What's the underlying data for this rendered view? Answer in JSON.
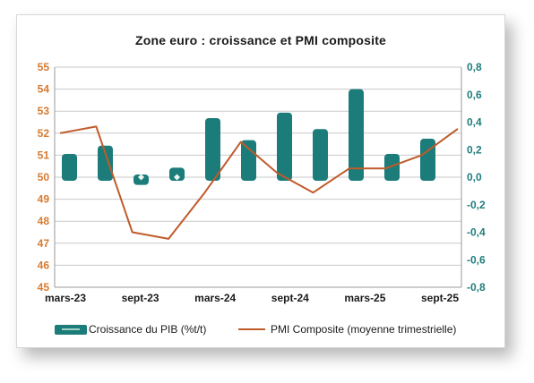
{
  "chart_data": {
    "type": "bar+line",
    "title": "Zone euro : croissance et PMI composite",
    "x_tick_labels": [
      "mars-23",
      "sept-23",
      "mars-24",
      "sept-24",
      "mars-25",
      "sept-25"
    ],
    "series": [
      {
        "name": "Croissance du PIB (%t/t)",
        "type": "bar",
        "axis": "right",
        "color": "#1b7c7a",
        "values": [
          0.15,
          0.21,
          -0.03,
          0.05,
          0.41,
          0.25,
          0.45,
          0.33,
          0.62,
          0.15,
          0.26
        ]
      },
      {
        "name": "PMI Composite (moyenne trimestrielle)",
        "type": "line",
        "axis": "left",
        "color": "#bf5b2a",
        "values": [
          52.0,
          52.3,
          47.5,
          47.2,
          49.3,
          51.6,
          50.2,
          49.3,
          50.4,
          50.4,
          51.0,
          52.2
        ]
      }
    ],
    "left_axis": {
      "range": [
        45,
        55
      ],
      "ticks": [
        "45",
        "46",
        "47",
        "48",
        "49",
        "50",
        "51",
        "52",
        "53",
        "54",
        "55"
      ]
    },
    "right_axis": {
      "range": [
        -0.8,
        0.8
      ],
      "ticks": [
        "-0,8",
        "-0,6",
        "-0,4",
        "-0,2",
        "0,0",
        "0,2",
        "0,4",
        "0,6",
        "0,8"
      ]
    },
    "grid": "horizontal",
    "legend_position": "bottom"
  }
}
